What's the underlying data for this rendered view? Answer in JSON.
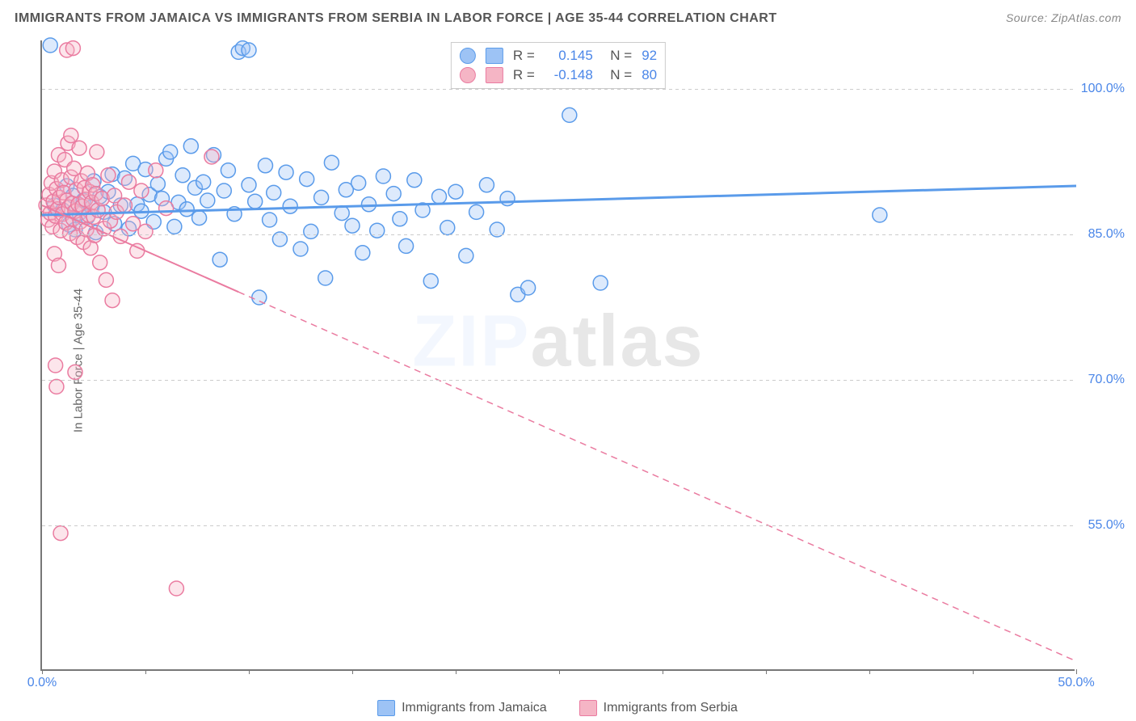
{
  "title": "IMMIGRANTS FROM JAMAICA VS IMMIGRANTS FROM SERBIA IN LABOR FORCE | AGE 35-44 CORRELATION CHART",
  "source_prefix": "Source: ",
  "source_name": "ZipAtlas.com",
  "y_axis_label": "In Labor Force | Age 35-44",
  "watermark": "ZIPatlas",
  "chart": {
    "type": "scatter",
    "x_domain": [
      0,
      50
    ],
    "y_domain": [
      40,
      105
    ],
    "y_ticks": [
      55.0,
      70.0,
      85.0,
      100.0
    ],
    "y_tick_labels": [
      "55.0%",
      "70.0%",
      "85.0%",
      "100.0%"
    ],
    "x_ticks": [
      0,
      5,
      10,
      15,
      20,
      25,
      30,
      35,
      40,
      45,
      50
    ],
    "x_labels_shown": {
      "0": "0.0%",
      "50": "50.0%"
    },
    "grid_color": "#cccccc",
    "axis_color": "#777777",
    "tick_label_color": "#4a86e8",
    "background_color": "#ffffff",
    "point_radius": 9
  },
  "series": [
    {
      "id": "jamaica",
      "label": "Immigrants from Jamaica",
      "color_fill": "#9dc3f5",
      "color_stroke": "#5a9bea",
      "r_value": "0.145",
      "n_value": "92",
      "trend": {
        "x1": 0,
        "y1": 87.0,
        "x2": 50,
        "y2": 90.0,
        "solid_until_x": 50,
        "stroke_width": 3
      },
      "points": [
        [
          0.4,
          104.5
        ],
        [
          0.6,
          88
        ],
        [
          1.0,
          87.5
        ],
        [
          1.2,
          90
        ],
        [
          1.3,
          86
        ],
        [
          1.5,
          89
        ],
        [
          1.6,
          85.5
        ],
        [
          1.8,
          87.2
        ],
        [
          2.0,
          88.5
        ],
        [
          2.2,
          86.8
        ],
        [
          2.4,
          87.8
        ],
        [
          2.5,
          90.5
        ],
        [
          2.6,
          85.2
        ],
        [
          2.8,
          88.9
        ],
        [
          3.0,
          87.3
        ],
        [
          3.2,
          89.4
        ],
        [
          3.4,
          91.2
        ],
        [
          3.5,
          86.1
        ],
        [
          3.8,
          88
        ],
        [
          4.0,
          90.8
        ],
        [
          4.2,
          85.6
        ],
        [
          4.4,
          92.3
        ],
        [
          4.6,
          88.1
        ],
        [
          4.8,
          87.4
        ],
        [
          5.0,
          91.7
        ],
        [
          5.2,
          89.1
        ],
        [
          5.4,
          86.3
        ],
        [
          5.6,
          90.2
        ],
        [
          5.8,
          88.7
        ],
        [
          6.0,
          92.8
        ],
        [
          6.2,
          93.5
        ],
        [
          6.4,
          85.8
        ],
        [
          6.6,
          88.3
        ],
        [
          6.8,
          91.1
        ],
        [
          7.0,
          87.6
        ],
        [
          7.2,
          94.1
        ],
        [
          7.4,
          89.8
        ],
        [
          7.6,
          86.7
        ],
        [
          7.8,
          90.4
        ],
        [
          8.0,
          88.5
        ],
        [
          8.3,
          93.2
        ],
        [
          8.6,
          82.4
        ],
        [
          8.8,
          89.5
        ],
        [
          9.0,
          91.6
        ],
        [
          9.3,
          87.1
        ],
        [
          9.5,
          103.8
        ],
        [
          9.7,
          104.2
        ],
        [
          10.0,
          104.0
        ],
        [
          10.0,
          90.1
        ],
        [
          10.3,
          88.4
        ],
        [
          10.5,
          78.5
        ],
        [
          10.8,
          92.1
        ],
        [
          11.0,
          86.5
        ],
        [
          11.2,
          89.3
        ],
        [
          11.5,
          84.5
        ],
        [
          11.8,
          91.4
        ],
        [
          12.0,
          87.9
        ],
        [
          12.5,
          83.5
        ],
        [
          12.8,
          90.7
        ],
        [
          13.0,
          85.3
        ],
        [
          13.5,
          88.8
        ],
        [
          13.7,
          80.5
        ],
        [
          14.0,
          92.4
        ],
        [
          14.5,
          87.2
        ],
        [
          14.7,
          89.6
        ],
        [
          15.0,
          85.9
        ],
        [
          15.3,
          90.3
        ],
        [
          15.5,
          83.1
        ],
        [
          15.8,
          88.1
        ],
        [
          16.2,
          85.4
        ],
        [
          16.5,
          91.0
        ],
        [
          17.0,
          89.2
        ],
        [
          17.3,
          86.6
        ],
        [
          17.6,
          83.8
        ],
        [
          18.0,
          90.6
        ],
        [
          18.4,
          87.5
        ],
        [
          18.8,
          80.2
        ],
        [
          19.2,
          88.9
        ],
        [
          19.6,
          85.7
        ],
        [
          20.0,
          89.4
        ],
        [
          20.5,
          82.8
        ],
        [
          21.0,
          87.3
        ],
        [
          21.5,
          90.1
        ],
        [
          22.0,
          85.5
        ],
        [
          22.5,
          88.7
        ],
        [
          23.0,
          78.8
        ],
        [
          23.5,
          79.5
        ],
        [
          25.5,
          97.3
        ],
        [
          27.0,
          80.0
        ],
        [
          40.5,
          87.0
        ]
      ]
    },
    {
      "id": "serbia",
      "label": "Immigrants from Serbia",
      "color_fill": "#f5b5c5",
      "color_stroke": "#ea7ba0",
      "r_value": "-0.148",
      "n_value": "80",
      "trend": {
        "x1": 0,
        "y1": 88.0,
        "x2": 50,
        "y2": 41.0,
        "solid_until_x": 9.5,
        "stroke_width": 2
      },
      "points": [
        [
          0.2,
          88
        ],
        [
          0.3,
          86.5
        ],
        [
          0.35,
          89.1
        ],
        [
          0.4,
          87.2
        ],
        [
          0.45,
          90.3
        ],
        [
          0.5,
          85.8
        ],
        [
          0.55,
          88.4
        ],
        [
          0.6,
          91.5
        ],
        [
          0.65,
          86.9
        ],
        [
          0.7,
          89.7
        ],
        [
          0.75,
          87.6
        ],
        [
          0.8,
          93.2
        ],
        [
          0.85,
          88.8
        ],
        [
          0.9,
          85.4
        ],
        [
          0.95,
          90.6
        ],
        [
          1.0,
          87.1
        ],
        [
          1.05,
          89.3
        ],
        [
          1.1,
          92.7
        ],
        [
          1.15,
          86.2
        ],
        [
          1.2,
          88.5
        ],
        [
          1.25,
          94.4
        ],
        [
          1.3,
          87.8
        ],
        [
          1.35,
          85.1
        ],
        [
          1.4,
          90.9
        ],
        [
          1.45,
          88.2
        ],
        [
          1.5,
          86.6
        ],
        [
          1.55,
          91.8
        ],
        [
          1.6,
          87.4
        ],
        [
          1.65,
          89.6
        ],
        [
          1.7,
          84.7
        ],
        [
          1.75,
          88.1
        ],
        [
          1.8,
          93.9
        ],
        [
          1.85,
          86.3
        ],
        [
          1.9,
          90.5
        ],
        [
          1.95,
          87.9
        ],
        [
          2.0,
          84.2
        ],
        [
          2.05,
          89.8
        ],
        [
          2.1,
          88.6
        ],
        [
          2.15,
          85.5
        ],
        [
          2.2,
          91.3
        ],
        [
          2.25,
          87.0
        ],
        [
          2.3,
          89.4
        ],
        [
          2.35,
          83.6
        ],
        [
          2.4,
          88.3
        ],
        [
          2.45,
          90.1
        ],
        [
          2.5,
          86.8
        ],
        [
          2.55,
          84.9
        ],
        [
          2.6,
          89.2
        ],
        [
          2.7,
          87.5
        ],
        [
          2.8,
          82.1
        ],
        [
          2.9,
          88.7
        ],
        [
          3.0,
          85.6
        ],
        [
          3.1,
          80.3
        ],
        [
          3.2,
          91.1
        ],
        [
          3.3,
          86.4
        ],
        [
          3.4,
          78.2
        ],
        [
          3.5,
          89.0
        ],
        [
          3.6,
          87.3
        ],
        [
          3.8,
          84.8
        ],
        [
          4.0,
          88.0
        ],
        [
          4.2,
          90.4
        ],
        [
          4.4,
          86.1
        ],
        [
          4.6,
          83.3
        ],
        [
          4.8,
          89.5
        ],
        [
          5.0,
          85.3
        ],
        [
          5.5,
          91.6
        ],
        [
          6.0,
          87.7
        ],
        [
          8.2,
          93.0
        ],
        [
          1.2,
          104.0
        ],
        [
          1.5,
          104.2
        ],
        [
          1.4,
          95.2
        ],
        [
          2.65,
          93.5
        ],
        [
          0.6,
          83.0
        ],
        [
          0.8,
          81.8
        ],
        [
          0.65,
          71.5
        ],
        [
          0.7,
          69.3
        ],
        [
          1.6,
          70.8
        ],
        [
          0.9,
          54.2
        ],
        [
          6.5,
          48.5
        ]
      ]
    }
  ],
  "legend_top": {
    "r_label": "R =",
    "n_label": "N ="
  }
}
